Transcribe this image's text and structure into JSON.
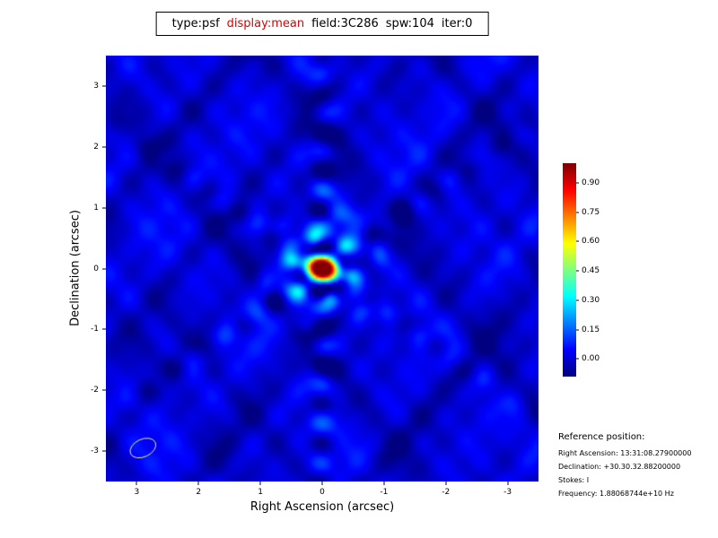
{
  "title": {
    "part_type": "type:psf",
    "part_display": "display:mean",
    "part_field": "field:3C286",
    "part_spw": "spw:104",
    "part_iter": "iter:0"
  },
  "reference": {
    "heading": "Reference position:",
    "lines": [
      "Right Ascension: 13:31:08.27900000",
      "Declination: +30.30.32.88200000",
      "Stokes: I",
      "Frequency: 1.88068744e+10 Hz"
    ]
  },
  "chart_data": {
    "type": "heatmap",
    "title": "type:psf display:mean field:3C286 spw:104 iter:0",
    "xlabel": "Right Ascension (arcsec)",
    "ylabel": "Declination (arcsec)",
    "x_ticks": [
      3,
      2,
      1,
      0,
      -1,
      -2,
      -3
    ],
    "y_ticks": [
      -3,
      -2,
      -1,
      0,
      1,
      2,
      3
    ],
    "xlim": [
      3.5,
      -3.5
    ],
    "ylim": [
      -3.5,
      3.5
    ],
    "grid": false,
    "colormap": "jet",
    "colorbar_ticks": [
      0.9,
      0.75,
      0.6,
      0.45,
      0.3,
      0.15,
      0.0
    ],
    "value_range": [
      -0.09,
      1.0
    ],
    "peak": {
      "x": 0.0,
      "y": 0.0,
      "value": 1.0
    },
    "description": "Point spread function map: bright elliptical central lobe at (0,0) reaching 1.0, surrounded by ring of green/cyan sidelobes (~0.2) and six-armed pattern of alternating positive/negative sidelobes (vertical arm plus diagonal arms) decaying outward over a mottled low-level blue background near 0.0",
    "beam_ellipse": {
      "x": 2.9,
      "y": -2.95,
      "rx": 0.22,
      "ry": 0.145,
      "angle_deg": 25,
      "color": "#f0f080"
    },
    "accent_red": "#dd0000"
  }
}
